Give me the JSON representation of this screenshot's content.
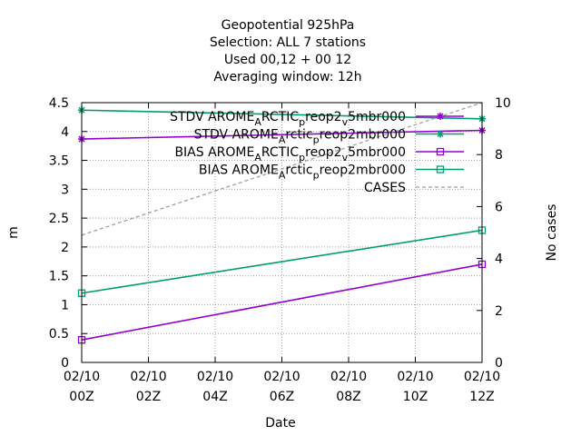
{
  "chart_data": {
    "type": "line",
    "title_lines": [
      "Geopotential 925hPa",
      "Selection: ALL      7 stations",
      "Used  00,12  + 00 12",
      "Averaging window: 12h"
    ],
    "xlabel": "Date",
    "ylabel": "m",
    "y2label": "No cases",
    "x_ticks": [
      {
        "line1": "02/10",
        "line2": "00Z",
        "hour": 0
      },
      {
        "line1": "02/10",
        "line2": "02Z",
        "hour": 2
      },
      {
        "line1": "02/10",
        "line2": "04Z",
        "hour": 4
      },
      {
        "line1": "02/10",
        "line2": "06Z",
        "hour": 6
      },
      {
        "line1": "02/10",
        "line2": "08Z",
        "hour": 8
      },
      {
        "line1": "02/10",
        "line2": "10Z",
        "hour": 10
      },
      {
        "line1": "02/10",
        "line2": "12Z",
        "hour": 12
      }
    ],
    "xlim_hours": [
      0,
      12
    ],
    "ylim": [
      0,
      4.5
    ],
    "y_ticks": [
      "0",
      "0.5",
      "1",
      "1.5",
      "2",
      "2.5",
      "3",
      "3.5",
      "4",
      "4.5"
    ],
    "y_tick_values": [
      0,
      0.5,
      1,
      1.5,
      2,
      2.5,
      3,
      3.5,
      4,
      4.5
    ],
    "y2lim": [
      0,
      10
    ],
    "y2_ticks": [
      "0",
      "2",
      "4",
      "6",
      "8",
      "10"
    ],
    "y2_tick_values": [
      0,
      2,
      4,
      6,
      8,
      10
    ],
    "grid": true,
    "legend_position": "top-right",
    "series": [
      {
        "legend_parts": [
          [
            "STDV AROME",
            ""
          ],
          [
            "A",
            "sub"
          ],
          [
            "RCTIC",
            ""
          ],
          [
            "p",
            "sub"
          ],
          [
            "reop2",
            ""
          ],
          [
            "v",
            "sub"
          ],
          [
            "5mbr000",
            ""
          ]
        ],
        "color": "#9400d3",
        "marker": "asterisk",
        "axis": "y1",
        "x_hours": [
          0,
          12
        ],
        "values": [
          3.87,
          4.02
        ]
      },
      {
        "legend_parts": [
          [
            "STDV AROME",
            ""
          ],
          [
            "A",
            "sub"
          ],
          [
            "rctic",
            ""
          ],
          [
            "p",
            "sub"
          ],
          [
            "reop2mbr000",
            ""
          ]
        ],
        "color": "#009e73",
        "marker": "asterisk",
        "axis": "y1",
        "x_hours": [
          0,
          12
        ],
        "values": [
          4.37,
          4.22
        ]
      },
      {
        "legend_parts": [
          [
            "BIAS AROME",
            ""
          ],
          [
            "A",
            "sub"
          ],
          [
            "RCTIC",
            ""
          ],
          [
            "p",
            "sub"
          ],
          [
            "reop2",
            ""
          ],
          [
            "v",
            "sub"
          ],
          [
            "5mbr000",
            ""
          ]
        ],
        "color": "#9400d3",
        "marker": "square",
        "axis": "y1",
        "x_hours": [
          0,
          12
        ],
        "values": [
          0.39,
          1.7
        ]
      },
      {
        "legend_parts": [
          [
            "BIAS AROME",
            ""
          ],
          [
            "A",
            "sub"
          ],
          [
            "rctic",
            ""
          ],
          [
            "p",
            "sub"
          ],
          [
            "reop2mbr000",
            ""
          ]
        ],
        "color": "#009e73",
        "marker": "square",
        "axis": "y1",
        "x_hours": [
          0,
          12
        ],
        "values": [
          1.2,
          2.29
        ]
      },
      {
        "legend_parts": [
          [
            "CASES",
            ""
          ]
        ],
        "color": "#a0a0a0",
        "marker": "none",
        "dashed": true,
        "axis": "y2",
        "x_hours": [
          0,
          12
        ],
        "values": [
          4.9,
          10.0
        ]
      }
    ]
  }
}
